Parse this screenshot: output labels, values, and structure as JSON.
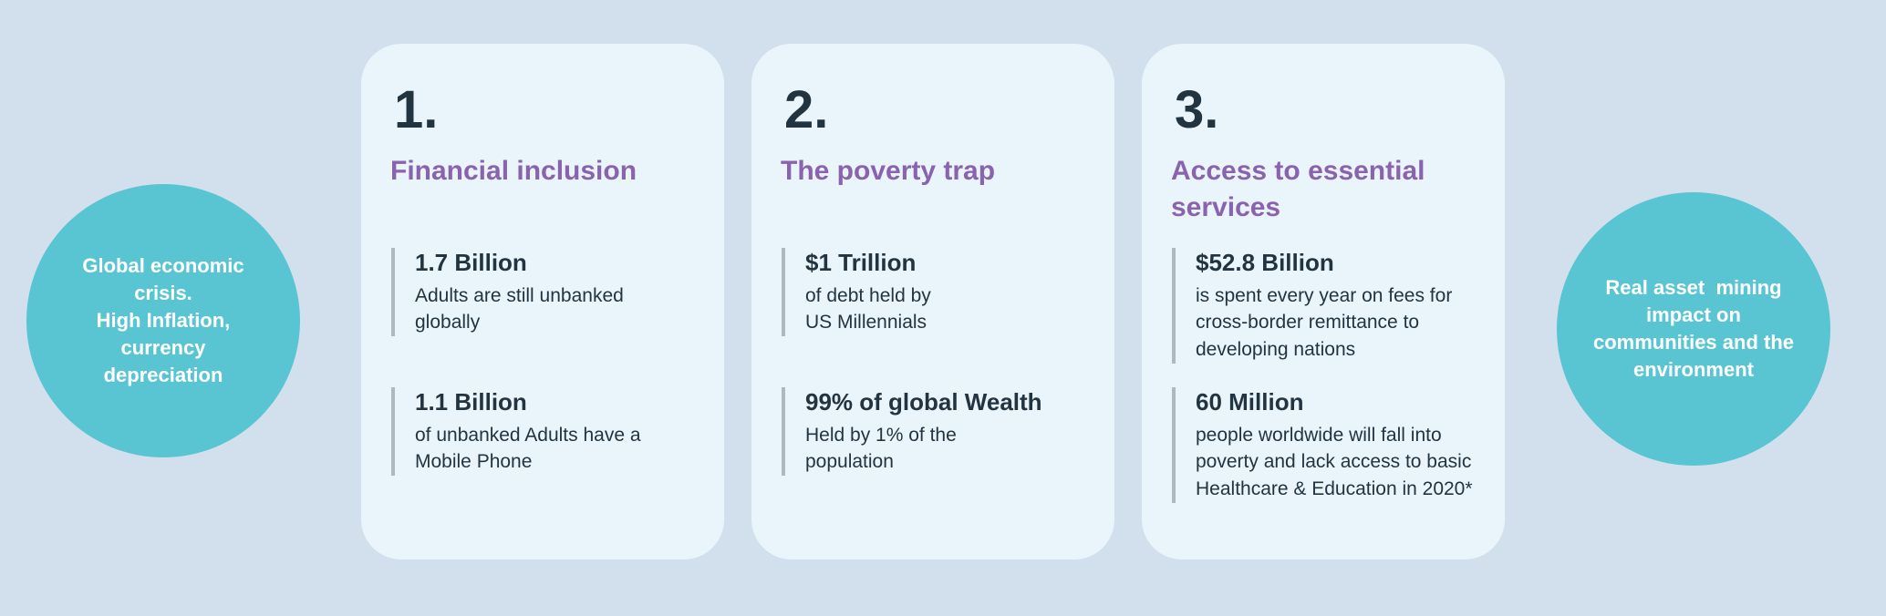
{
  "colors": {
    "background": "#d1e0ec",
    "card": "#e9f4fb",
    "circle": "#59c5d2",
    "heading": "#8a63ae",
    "text_dark": "#233441",
    "bar": "#aeb8c0"
  },
  "left_circle": {
    "text": "Global economic\ncrisis.\nHigh Inflation,\ncurrency\ndepreciation"
  },
  "right_circle": {
    "text": "Real asset  mining\nimpact on\ncommunities and the\nenvironment"
  },
  "cards": [
    {
      "number": "1.",
      "heading": "Financial inclusion",
      "stats": [
        {
          "value": "1.7 Billion",
          "description": "Adults are still unbanked\nglobally"
        },
        {
          "value": "1.1 Billion",
          "description": "of unbanked Adults have a\nMobile Phone"
        }
      ]
    },
    {
      "number": "2.",
      "heading": "The poverty trap",
      "stats": [
        {
          "value": "$1 Trillion",
          "description": "of debt held by\nUS Millennials"
        },
        {
          "value": "99% of global Wealth",
          "description": "Held by 1% of the\npopulation"
        }
      ]
    },
    {
      "number": "3.",
      "heading": "Access to essential\nservices",
      "stats": [
        {
          "value": "$52.8 Billion",
          "description": "is spent every year on fees for\ncross-border remittance to\ndeveloping nations"
        },
        {
          "value": "60 Million",
          "description": "people worldwide will fall into\npoverty and lack access to basic\nHealthcare & Education in 2020*"
        }
      ]
    }
  ]
}
